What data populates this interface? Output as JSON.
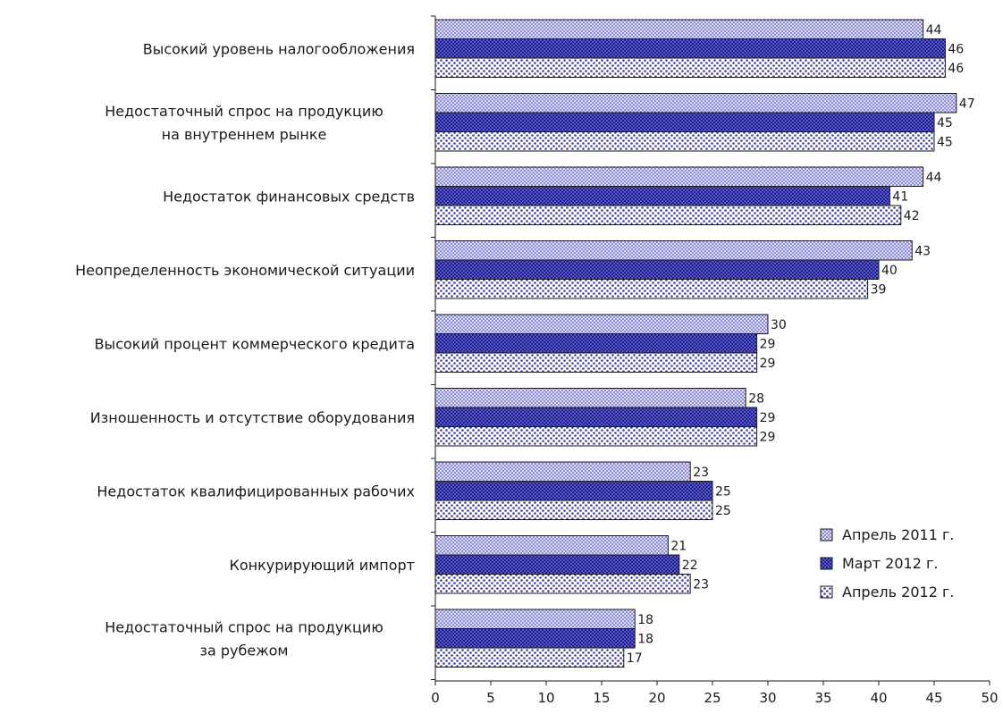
{
  "chart_data": {
    "type": "bar",
    "orientation": "horizontal",
    "title": "",
    "xlabel": "",
    "ylabel": "",
    "xlim": [
      0,
      50
    ],
    "x_ticks": [
      0,
      5,
      10,
      15,
      20,
      25,
      30,
      35,
      40,
      45,
      50
    ],
    "grid": false,
    "legend_position": "bottom-right",
    "categories": [
      [
        "Высокий уровень налогообложения"
      ],
      [
        "Недостаточный спрос на продукцию",
        "на внутреннем рынке"
      ],
      [
        "Недостаток финансовых средств"
      ],
      [
        "Неопределенность экономической ситуации"
      ],
      [
        "Высокий процент коммерческого кредита"
      ],
      [
        "Изношенность и отсутствие оборудования"
      ],
      [
        "Недостаток квалифицированных рабочих"
      ],
      [
        "Конкурирующий импорт"
      ],
      [
        "Недостаточный спрос на продукцию",
        "за рубежом"
      ]
    ],
    "series": [
      {
        "name": "Апрель 2011 г.",
        "color": "#a6a6e6",
        "pattern": "fine-check",
        "values": [
          44,
          47,
          44,
          43,
          30,
          28,
          23,
          21,
          18
        ]
      },
      {
        "name": "Март 2012 г.",
        "color": "#3333a8",
        "pattern": "dark-check",
        "values": [
          46,
          45,
          41,
          40,
          29,
          29,
          25,
          22,
          18
        ]
      },
      {
        "name": "Апрель 2012 г.",
        "color": "#4a4ab0",
        "pattern": "dots",
        "values": [
          46,
          45,
          42,
          39,
          29,
          29,
          25,
          23,
          17
        ]
      }
    ]
  }
}
